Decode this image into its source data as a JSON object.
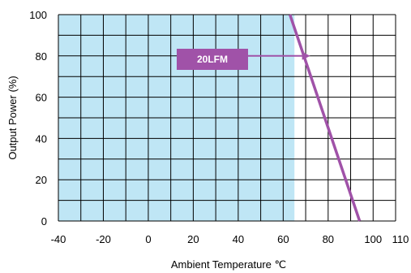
{
  "chart_data": {
    "type": "line",
    "xlabel": "Ambient Temperature ℃",
    "ylabel": "Output Power (%)",
    "xlim": [
      -40,
      110
    ],
    "ylim": [
      0,
      100
    ],
    "x_ticks": [
      -40,
      -20,
      0,
      20,
      40,
      60,
      80,
      100,
      110
    ],
    "x_tick_labels": [
      "-40",
      "-20",
      "0",
      "20",
      "40",
      "60",
      "80",
      "100",
      "110"
    ],
    "y_ticks": [
      0,
      20,
      40,
      60,
      80,
      100
    ],
    "y_tick_labels": [
      "0",
      "20",
      "40",
      "60",
      "80",
      "100"
    ],
    "grid": true,
    "shaded_region": {
      "x": [
        -40,
        65
      ],
      "color": "#bfe6f5"
    },
    "series": [
      {
        "name": "20LFM",
        "color": "#a052a8",
        "x": [
          63,
          94
        ],
        "y": [
          100,
          0
        ]
      }
    ],
    "annotation": {
      "text": "20LFM",
      "points_to": {
        "x": 72,
        "y": 80
      },
      "color": "#a052a8"
    }
  }
}
